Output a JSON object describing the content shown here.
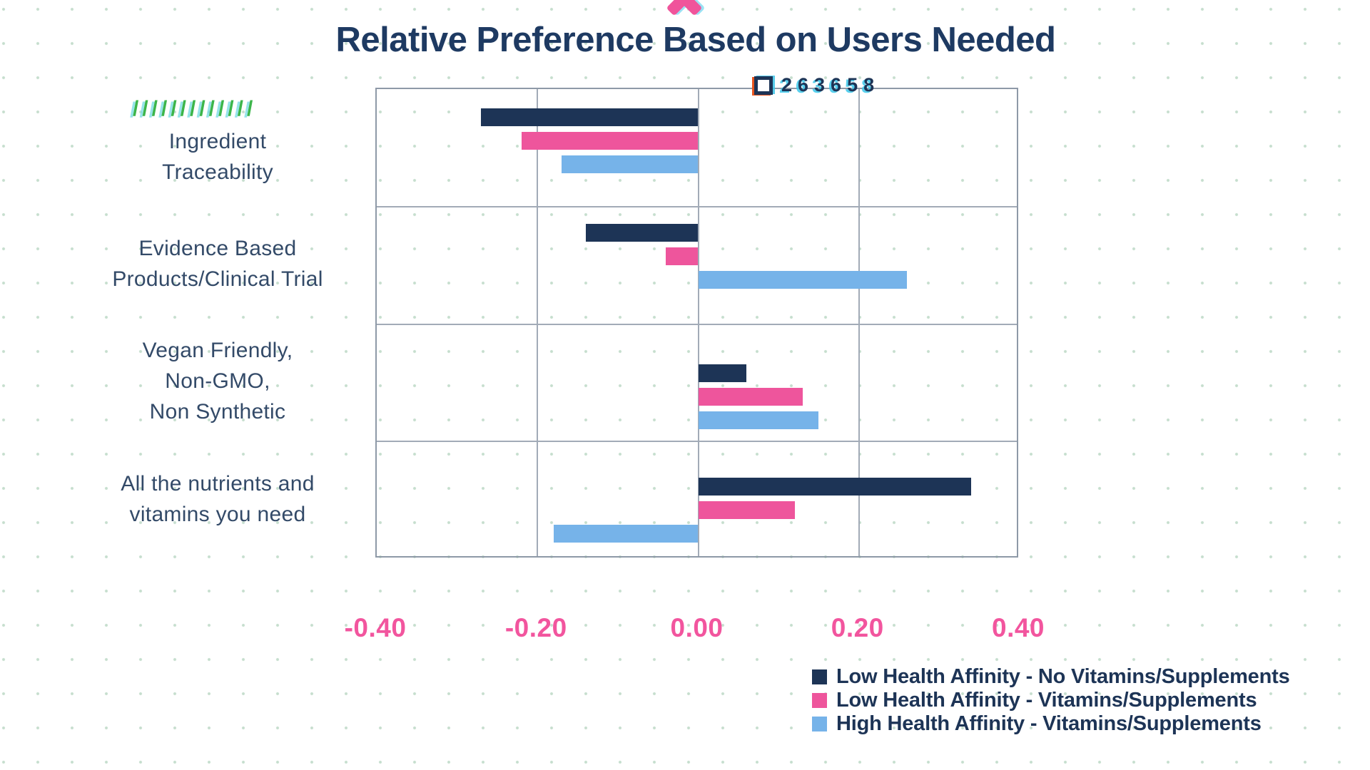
{
  "title": "Relative Preference Based on Users Needed",
  "decorations": {
    "slashes": "/////////////",
    "sample_value": "263658",
    "checkbox_icon": "checkbox",
    "top_cross_icon": "pink-cross",
    "slash_color": "#3cb54a",
    "cross_color": "#f0549b"
  },
  "colors": {
    "title_text": "#1e3a62",
    "category_text": "#334a68",
    "axis_label_text": "#f2559e",
    "legend_text": "#1d3456",
    "gridline": "#a2abb7",
    "plot_border": "#8e99a7",
    "background": "#ffffff",
    "background_dots": "#80b692"
  },
  "chart_data": {
    "type": "bar",
    "orientation": "horizontal",
    "title": "Relative Preference Based on Users Needed",
    "xlabel": "",
    "ylabel": "",
    "xlim": [
      -0.4,
      0.4
    ],
    "grid": true,
    "legend_position": "bottom-right",
    "categories": [
      "Ingredient Traceability",
      "Evidence Based Products/Clinical Trial",
      "Vegan Friendly, Non-GMO, Non Synthetic",
      "All the nutrients and vitamins you need"
    ],
    "category_lines": [
      [
        "Ingredient",
        "Traceability"
      ],
      [
        "Evidence Based",
        "Products/Clinical Trial"
      ],
      [
        "Vegan Friendly,",
        "Non-GMO,",
        "Non Synthetic"
      ],
      [
        "All the nutrients and",
        "vitamins you need"
      ]
    ],
    "series": [
      {
        "name": "Low Health Affinity - No Vitamins/Supplements",
        "color": "#1d3456",
        "values": [
          -0.27,
          -0.14,
          0.06,
          0.34
        ]
      },
      {
        "name": "Low Health Affinity - Vitamins/Supplements",
        "color": "#ee559c",
        "values": [
          -0.22,
          -0.04,
          0.13,
          0.12
        ]
      },
      {
        "name": "High Health Affinity - Vitamins/Supplements",
        "color": "#76b3e9",
        "values": [
          -0.17,
          0.26,
          0.15,
          -0.18
        ]
      }
    ],
    "x_ticks": [
      {
        "value": -0.4,
        "label": "-0.40"
      },
      {
        "value": -0.2,
        "label": "-0.20"
      },
      {
        "value": 0.0,
        "label": "0.00"
      },
      {
        "value": 0.2,
        "label": "0.20"
      },
      {
        "value": 0.4,
        "label": "0.40"
      }
    ]
  }
}
